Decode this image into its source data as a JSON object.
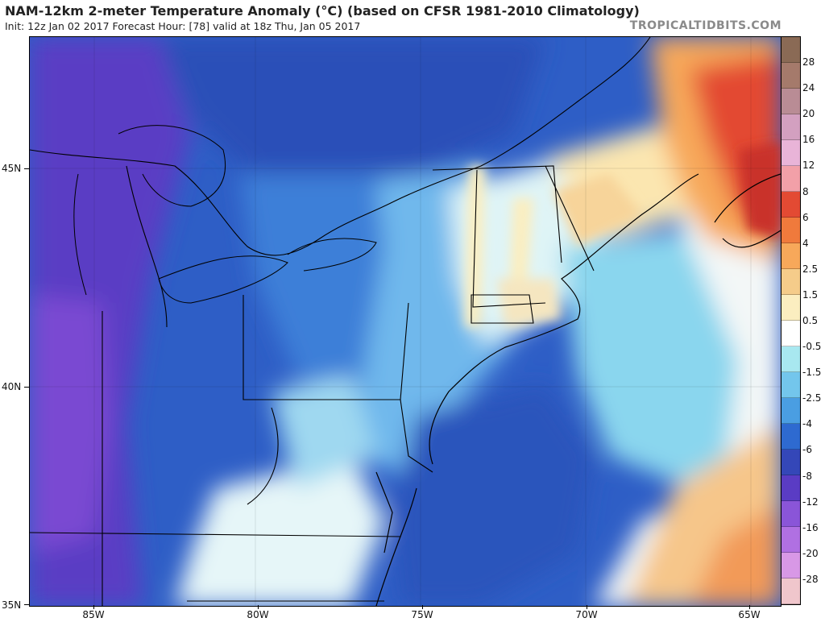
{
  "header": {
    "title": "NAM-12km 2-meter Temperature Anomaly (°C) (based on CFSR 1981-2010 Climatology)",
    "subtitle": "Init: 12z Jan 02 2017   Forecast Hour: [78]   valid at 18z Thu, Jan 05 2017",
    "brand": "TROPICALTIDBITS.COM"
  },
  "axes": {
    "lat_labels": [
      "45N",
      "40N",
      "35N"
    ],
    "lon_labels": [
      "85W",
      "80W",
      "75W",
      "70W",
      "65W"
    ]
  },
  "colorbar": {
    "labels": [
      "28",
      "24",
      "20",
      "16",
      "12",
      "8",
      "6",
      "4",
      "2.5",
      "1.5",
      "0.5",
      "-0.5",
      "-1.5",
      "-2.5",
      "-4",
      "-6",
      "-8",
      "-12",
      "-16",
      "-20",
      "-28"
    ],
    "colors": [
      "#8a6a55",
      "#a57a6b",
      "#b98c95",
      "#d3a0c0",
      "#e9b4d8",
      "#f2a0a8",
      "#e34a33",
      "#f07a3c",
      "#f7a85a",
      "#f5cc8a",
      "#fbeec0",
      "#ffffff",
      "#a8e8f0",
      "#73c6ec",
      "#4a9ee2",
      "#2e6ad0",
      "#3447b8",
      "#5a3cc4",
      "#8a55d8",
      "#b070e2",
      "#d898e6",
      "#f0c6cc"
    ]
  }
}
